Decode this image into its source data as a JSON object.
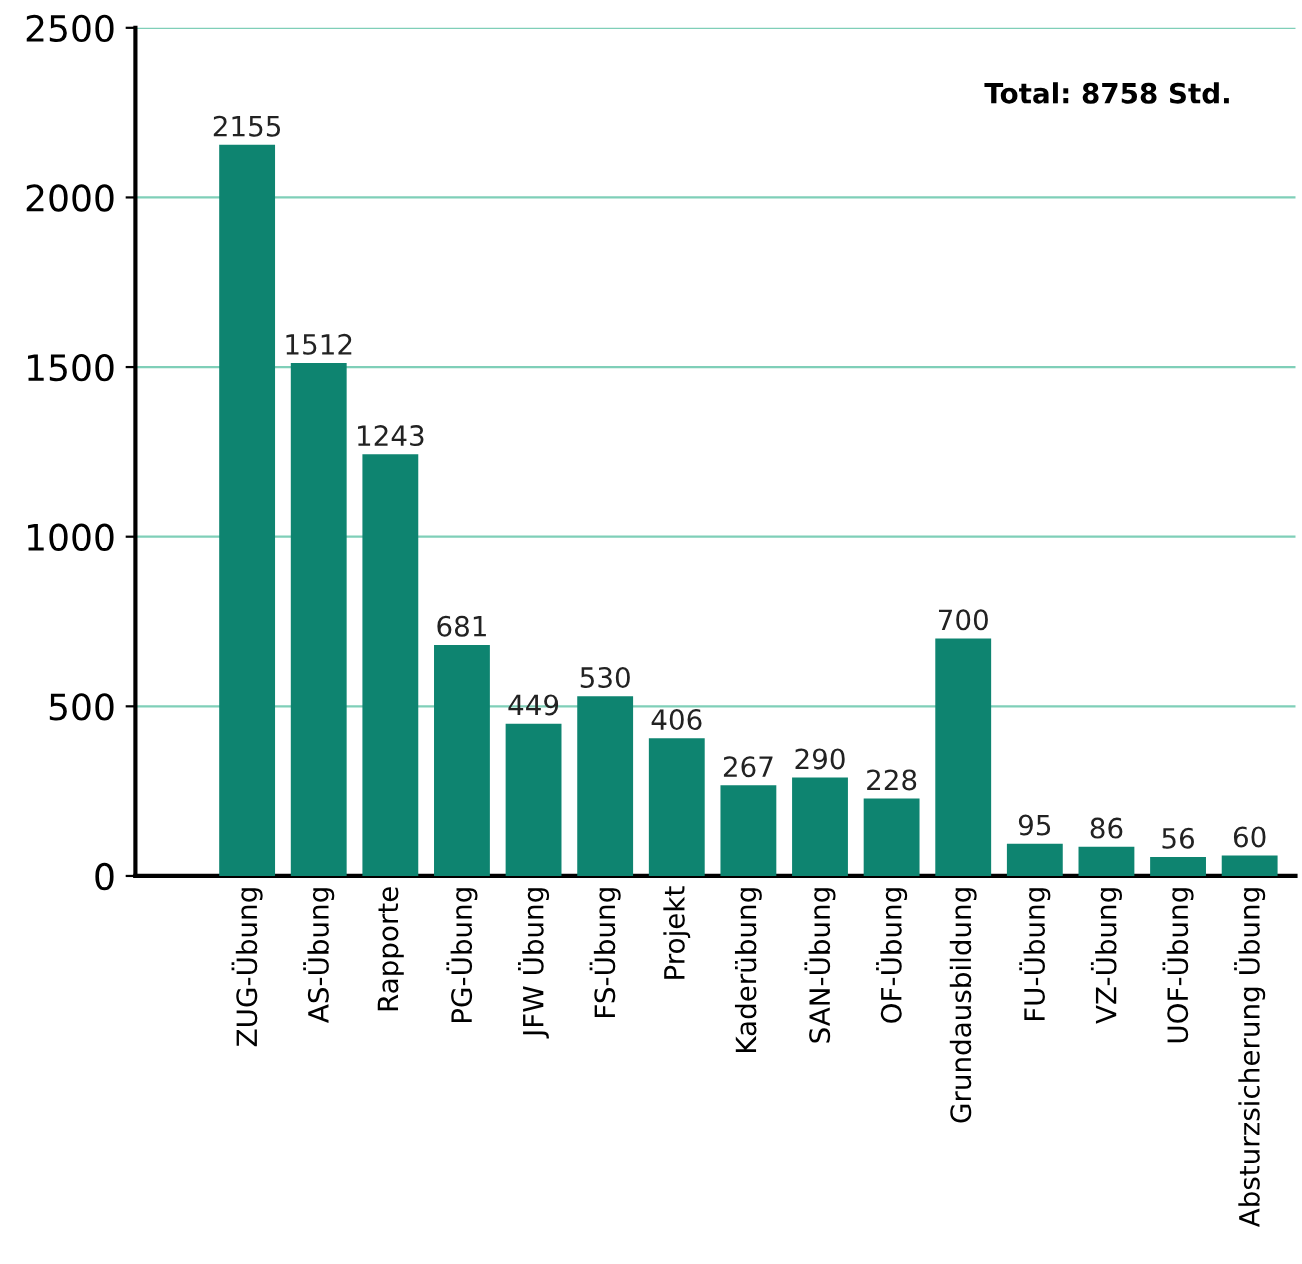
{
  "chart_data": {
    "type": "bar",
    "categories": [
      "ZUG-Übung",
      "AS-Übung",
      "Rapporte",
      "PG-Übung",
      "JFW Übung",
      "FS-Übung",
      "Projekt",
      "Kaderübung",
      "SAN-Übung",
      "OF-Übung",
      "Grundausbildung",
      "FU-Übung",
      "VZ-Übung",
      "UOF-Übung",
      "Absturzsicherung Übung"
    ],
    "values": [
      2155,
      1512,
      1243,
      681,
      449,
      530,
      406,
      267,
      290,
      228,
      700,
      95,
      86,
      56,
      60
    ],
    "color": "#0e8470",
    "ylim": [
      0,
      2500
    ],
    "yticks": [
      0,
      500,
      1000,
      1500,
      2000,
      2500
    ],
    "grid": "y",
    "data_labels": true,
    "annotations": [
      "Total: 8758 Std."
    ]
  }
}
